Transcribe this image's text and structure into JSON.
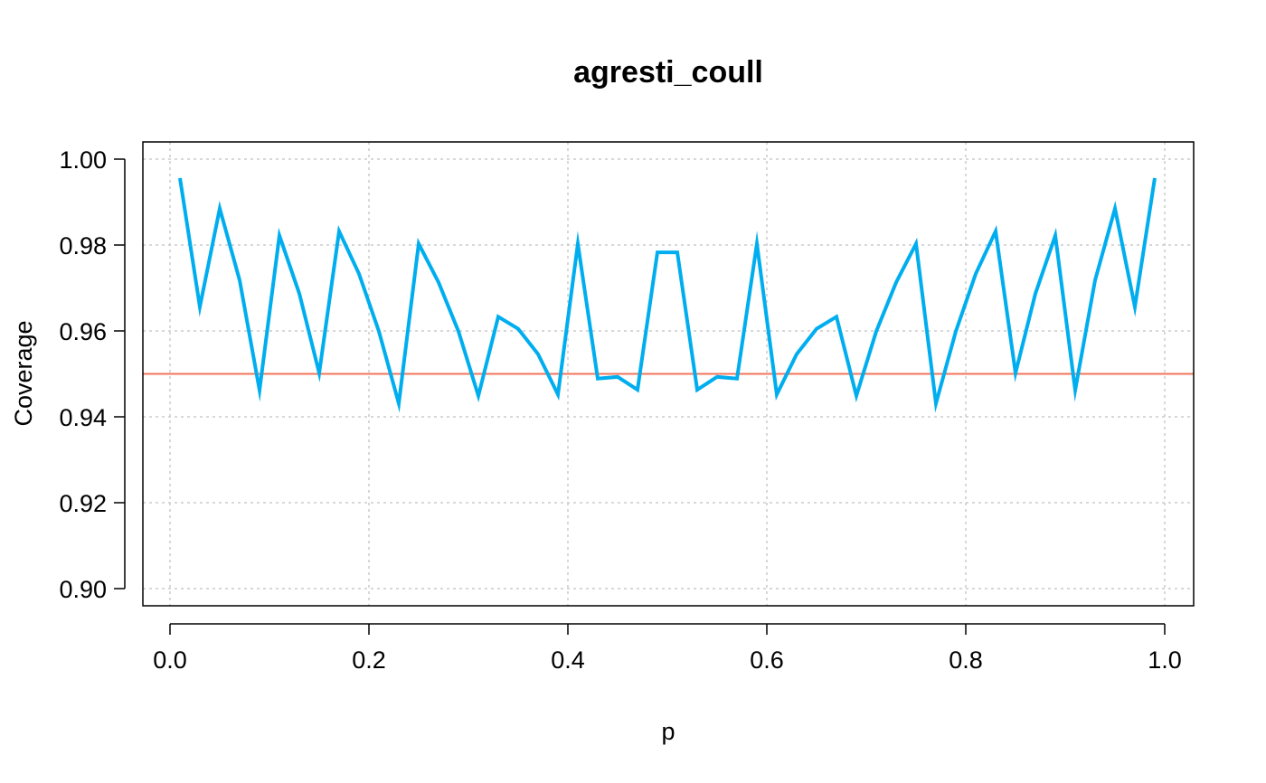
{
  "chart_data": {
    "type": "line",
    "title": "agresti_coull",
    "xlabel": "p",
    "ylabel": "Coverage",
    "xlim": [
      0.0,
      1.0
    ],
    "ylim": [
      0.9,
      1.0
    ],
    "xticks": [
      "0.0",
      "0.2",
      "0.4",
      "0.6",
      "0.8",
      "1.0"
    ],
    "yticks": [
      "0.90",
      "0.92",
      "0.94",
      "0.96",
      "0.98",
      "1.00"
    ],
    "grid": true,
    "reference_line": {
      "y": 0.95,
      "color": "#F0755A"
    },
    "series": [
      {
        "color": "#00AEEF",
        "x": [
          0.01,
          0.03,
          0.05,
          0.07,
          0.09,
          0.11,
          0.13,
          0.15,
          0.17,
          0.19,
          0.21,
          0.23,
          0.25,
          0.27,
          0.29,
          0.31,
          0.33,
          0.35,
          0.37,
          0.39,
          0.41,
          0.43,
          0.45,
          0.47,
          0.49,
          0.51,
          0.53,
          0.55,
          0.57,
          0.59,
          0.61,
          0.63,
          0.65,
          0.67,
          0.69,
          0.71,
          0.73,
          0.75,
          0.77,
          0.79,
          0.81,
          0.83,
          0.85,
          0.87,
          0.89,
          0.91,
          0.93,
          0.95,
          0.97,
          0.99
        ],
        "y": [
          0.9956,
          0.9656,
          0.9885,
          0.9718,
          0.9462,
          0.9822,
          0.9687,
          0.9502,
          0.9832,
          0.9733,
          0.9599,
          0.9431,
          0.9803,
          0.9713,
          0.9599,
          0.9449,
          0.9633,
          0.9605,
          0.9546,
          0.9452,
          0.9803,
          0.9489,
          0.9493,
          0.9463,
          0.9783,
          0.9783,
          0.9463,
          0.9493,
          0.9489,
          0.9803,
          0.9452,
          0.9546,
          0.9605,
          0.9633,
          0.9449,
          0.9599,
          0.9713,
          0.9803,
          0.9431,
          0.9599,
          0.9733,
          0.9832,
          0.9502,
          0.9687,
          0.9822,
          0.9462,
          0.9718,
          0.9885,
          0.9656,
          0.9956
        ]
      }
    ]
  }
}
